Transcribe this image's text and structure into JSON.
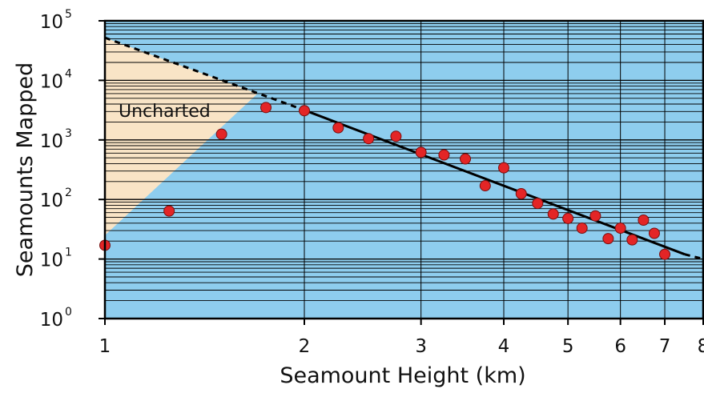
{
  "chart_data": {
    "type": "scatter",
    "title": "",
    "xlabel": "Seamount Height (km)",
    "ylabel": "Seamounts Mapped",
    "x_scale": "log",
    "y_scale": "log",
    "xlim": [
      1,
      8
    ],
    "ylim": [
      1,
      100000
    ],
    "x_ticks": [
      1,
      2,
      3,
      4,
      5,
      6,
      7,
      8
    ],
    "x_tick_labels": [
      "1",
      "2",
      "3",
      "4",
      "5",
      "6",
      "7",
      "8"
    ],
    "y_ticks": [
      1,
      10,
      100,
      1000,
      10000,
      100000
    ],
    "y_tick_labels": [
      {
        "base": "10",
        "exp": "0"
      },
      {
        "base": "10",
        "exp": "1"
      },
      {
        "base": "10",
        "exp": "2"
      },
      {
        "base": "10",
        "exp": "3"
      },
      {
        "base": "10",
        "exp": "4"
      },
      {
        "base": "10",
        "exp": "5"
      }
    ],
    "grid": true,
    "points": [
      {
        "x": 1.0,
        "y": 17
      },
      {
        "x": 1.25,
        "y": 64
      },
      {
        "x": 1.5,
        "y": 1250
      },
      {
        "x": 1.75,
        "y": 3500
      },
      {
        "x": 2.0,
        "y": 3100
      },
      {
        "x": 2.25,
        "y": 1600
      },
      {
        "x": 2.5,
        "y": 1050
      },
      {
        "x": 2.75,
        "y": 1150
      },
      {
        "x": 3.0,
        "y": 620
      },
      {
        "x": 3.25,
        "y": 560
      },
      {
        "x": 3.5,
        "y": 480
      },
      {
        "x": 3.75,
        "y": 170
      },
      {
        "x": 4.0,
        "y": 340
      },
      {
        "x": 4.25,
        "y": 125
      },
      {
        "x": 4.5,
        "y": 86
      },
      {
        "x": 4.75,
        "y": 57
      },
      {
        "x": 5.0,
        "y": 48
      },
      {
        "x": 5.25,
        "y": 33
      },
      {
        "x": 5.5,
        "y": 53
      },
      {
        "x": 5.75,
        "y": 22
      },
      {
        "x": 6.0,
        "y": 33
      },
      {
        "x": 6.25,
        "y": 21
      },
      {
        "x": 6.5,
        "y": 45
      },
      {
        "x": 6.75,
        "y": 27
      },
      {
        "x": 7.0,
        "y": 12
      }
    ],
    "fit_line": {
      "solid": {
        "x": [
          2.0,
          7.5
        ],
        "y": [
          3160,
          12
        ]
      },
      "dashed_left": {
        "x": [
          1.0,
          2.0
        ],
        "y": [
          52000,
          3160
        ]
      },
      "dashed_right": {
        "x": [
          7.5,
          8.0
        ],
        "y": [
          12,
          10
        ]
      }
    },
    "uncharted_region": {
      "label": "Uncharted",
      "vertices": [
        {
          "x": 1.0,
          "y": 52000
        },
        {
          "x": 1.7,
          "y": 6000
        },
        {
          "x": 1.0,
          "y": 25
        }
      ]
    },
    "colors": {
      "background": "#8ecdee",
      "uncharted": "#f9e4c6",
      "grid": "#000000",
      "points": "#e32526",
      "line": "#000000"
    }
  }
}
